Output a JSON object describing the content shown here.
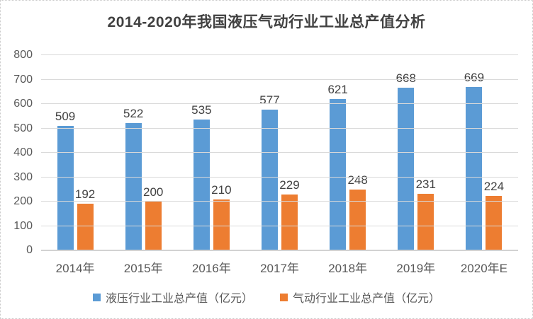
{
  "chart_data": {
    "type": "bar",
    "title": "2014-2020年我国液压气动行业工业总产值分析",
    "categories": [
      "2014年",
      "2015年",
      "2016年",
      "2017年",
      "2018年",
      "2019年",
      "2020年E"
    ],
    "series": [
      {
        "name": "液压行业工业总产值（亿元）",
        "color": "#5B9BD5",
        "values": [
          509,
          522,
          535,
          577,
          621,
          668,
          669
        ]
      },
      {
        "name": "气动行业工业总产值（亿元）",
        "color": "#ED7D31",
        "values": [
          192,
          200,
          210,
          229,
          248,
          231,
          224
        ]
      }
    ],
    "xlabel": "",
    "ylabel": "",
    "ylim": [
      0,
      800
    ],
    "yticks": [
      0,
      100,
      200,
      300,
      400,
      500,
      600,
      700,
      800
    ],
    "grid": true,
    "legend_position": "bottom",
    "data_labels": true
  },
  "colors": {
    "title_text": "#414141",
    "axis_text": "#595959",
    "data_label_text": "#414141",
    "gridline": "#D9D9D9",
    "axis_line": "#D2D2D2",
    "frame_border": "#C9C9C9",
    "series_hydraulic": "#5B9BD5",
    "series_pneumatic": "#ED7D31"
  }
}
